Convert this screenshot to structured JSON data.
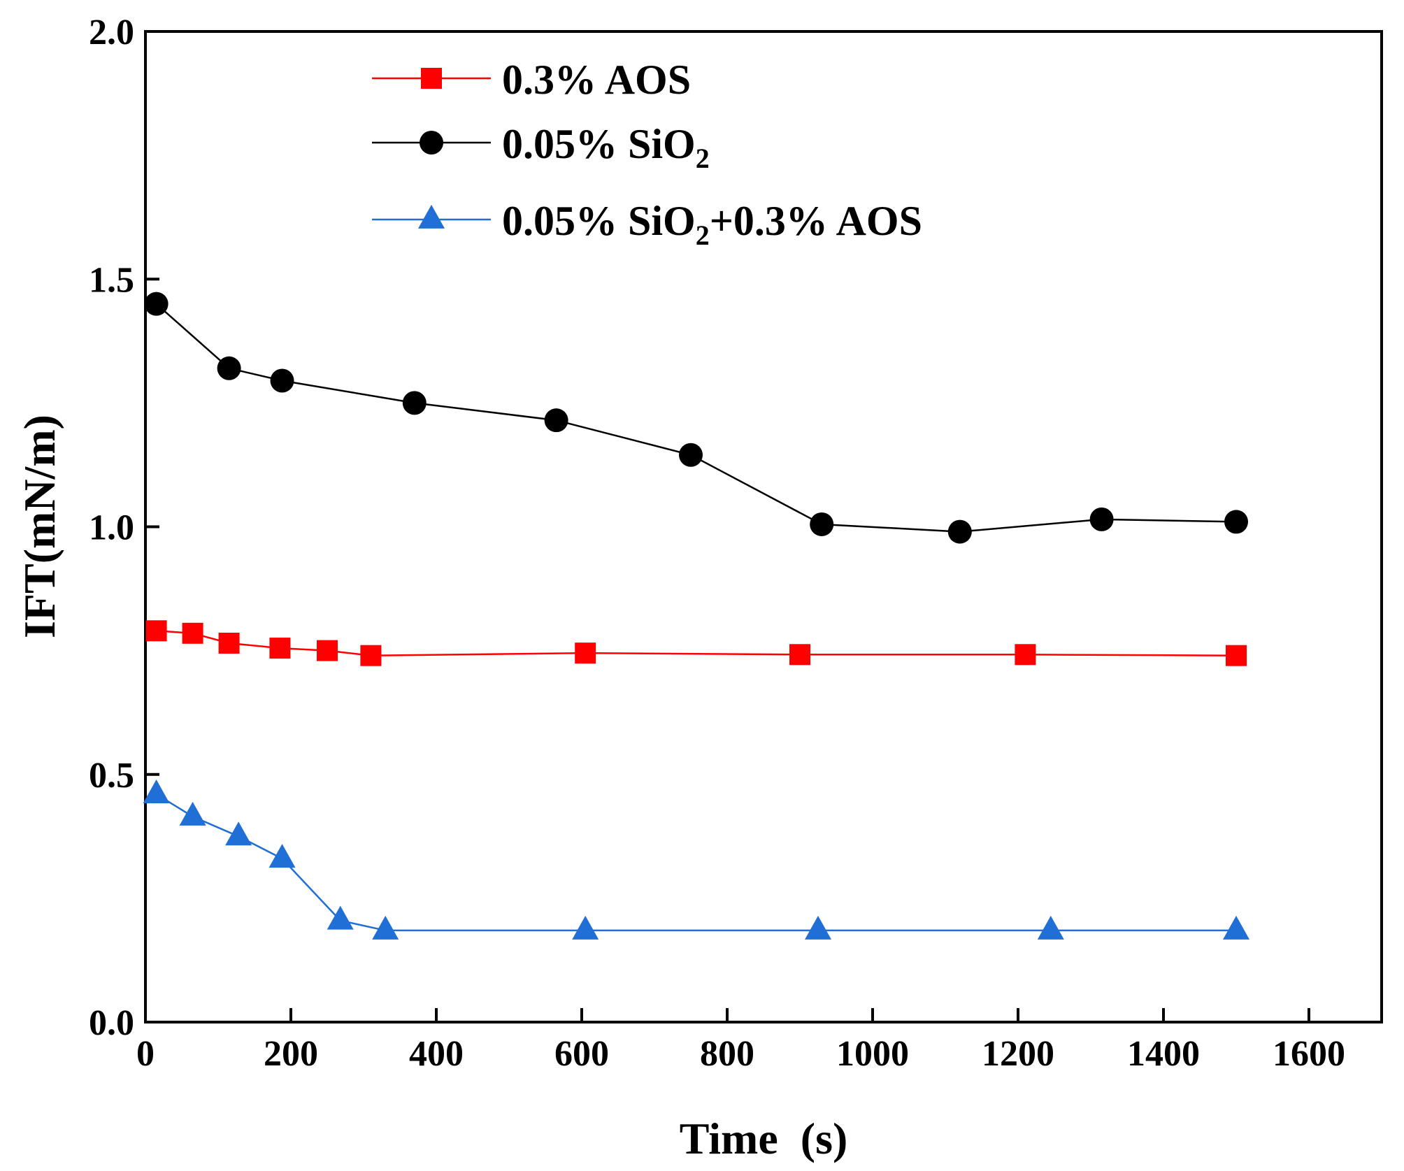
{
  "chart_data": {
    "type": "line",
    "title": "",
    "xlabel": "Time  (s)",
    "ylabel": "IFT(mN/m)",
    "xlim": [
      0,
      1700
    ],
    "ylim": [
      0,
      2.0
    ],
    "xticks": [
      0,
      200,
      400,
      600,
      800,
      1000,
      1200,
      1400,
      1600
    ],
    "xtick_labels": [
      "0",
      "200",
      "400",
      "600",
      "800",
      "1000",
      "1200",
      "1400",
      "1600"
    ],
    "yticks": [
      0,
      0.5,
      1.0,
      1.5,
      2.0
    ],
    "ytick_labels": [
      "0.0",
      "0.5",
      "1.0",
      "1.5",
      "2.0"
    ],
    "grid": false,
    "legend_position": "top-center",
    "series": [
      {
        "name": "0.3%  AOS",
        "name_parts": [
          {
            "text": "0.3%  AOS",
            "sub": false
          }
        ],
        "color": "#ff0000",
        "marker": "square",
        "x": [
          15,
          65,
          115,
          185,
          250,
          310,
          605,
          900,
          1210,
          1500
        ],
        "y": [
          0.79,
          0.785,
          0.765,
          0.755,
          0.75,
          0.74,
          0.745,
          0.742,
          0.742,
          0.74
        ]
      },
      {
        "name": "0.05%  SiO2",
        "name_parts": [
          {
            "text": "0.05%  SiO",
            "sub": false
          },
          {
            "text": "2",
            "sub": true
          }
        ],
        "color": "#000000",
        "marker": "circle",
        "x": [
          15,
          115,
          188,
          370,
          565,
          750,
          930,
          1120,
          1315,
          1500
        ],
        "y": [
          1.45,
          1.32,
          1.295,
          1.25,
          1.215,
          1.145,
          1.005,
          0.99,
          1.015,
          1.01
        ]
      },
      {
        "name": "0.05%  SiO2+0.3% AOS",
        "name_parts": [
          {
            "text": "0.05%  SiO",
            "sub": false
          },
          {
            "text": "2",
            "sub": true
          },
          {
            "text": "+0.3% AOS",
            "sub": false
          }
        ],
        "color": "#1f6fd6",
        "marker": "triangle",
        "x": [
          15,
          65,
          128,
          188,
          268,
          330,
          605,
          925,
          1245,
          1500
        ],
        "y": [
          0.46,
          0.415,
          0.375,
          0.33,
          0.205,
          0.185,
          0.185,
          0.185,
          0.185,
          0.185
        ]
      }
    ]
  }
}
